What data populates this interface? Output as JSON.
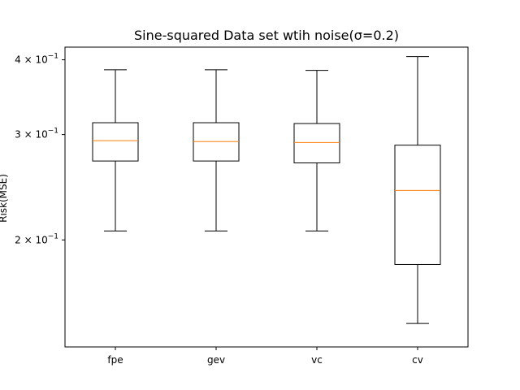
{
  "chart_data": {
    "type": "box",
    "title": "Sine-squared Data set wtih noise(σ=0.2)",
    "xlabel": "",
    "ylabel": "Risk(MSE)",
    "yscale": "log",
    "ylim": [
      0.1325,
      0.42
    ],
    "categories": [
      "fpe",
      "gev",
      "vc",
      "cv"
    ],
    "boxes": [
      {
        "name": "fpe",
        "whisker_low": 0.207,
        "q1": 0.271,
        "median": 0.293,
        "q3": 0.314,
        "whisker_high": 0.385
      },
      {
        "name": "gev",
        "whisker_low": 0.207,
        "q1": 0.271,
        "median": 0.292,
        "q3": 0.314,
        "whisker_high": 0.385
      },
      {
        "name": "vc",
        "whisker_low": 0.207,
        "q1": 0.269,
        "median": 0.291,
        "q3": 0.313,
        "whisker_high": 0.384
      },
      {
        "name": "cv",
        "whisker_low": 0.145,
        "q1": 0.182,
        "median": 0.242,
        "q3": 0.288,
        "whisker_high": 0.405
      }
    ],
    "yticks": [
      {
        "value": 0.4,
        "mantissa": "4",
        "base": "10",
        "exp": "−1"
      },
      {
        "value": 0.3,
        "mantissa": "3",
        "base": "10",
        "exp": "−1"
      },
      {
        "value": 0.2,
        "mantissa": "2",
        "base": "10",
        "exp": "−1"
      }
    ],
    "colors": {
      "box": "#000000",
      "median": "#ff7f0e",
      "background": "#ffffff"
    },
    "grid": false,
    "legend": "none"
  }
}
